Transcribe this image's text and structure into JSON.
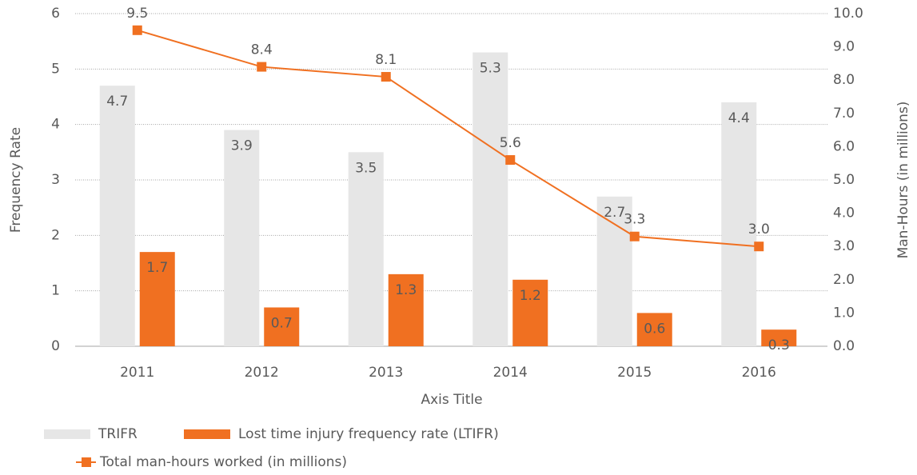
{
  "chart_data": {
    "type": "bar-line",
    "x_label": "Axis Title",
    "y_label": "Frequency Rate",
    "y2_label": "Man-Hours (in millions)",
    "categories": [
      "2011",
      "2012",
      "2013",
      "2014",
      "2015",
      "2016"
    ],
    "series": [
      {
        "name": "TRIFR",
        "type": "bar",
        "color": "#e6e6e6",
        "values": [
          4.7,
          3.9,
          3.5,
          5.3,
          2.7,
          4.4
        ]
      },
      {
        "name": "Lost time injury frequency rate (LTIFR)",
        "type": "bar",
        "color": "#f07021",
        "values": [
          1.7,
          0.7,
          1.3,
          1.2,
          0.6,
          0.3
        ]
      },
      {
        "name": "Total man-hours worked (in millions)",
        "type": "line",
        "axis": "y2",
        "color": "#f07021",
        "values": [
          9.5,
          8.4,
          8.1,
          5.6,
          3.3,
          3.0
        ],
        "value_labels": [
          "9.5",
          "8.4",
          "8.1",
          "5.6",
          "3.3",
          "3.0"
        ]
      }
    ],
    "ylim": [
      0,
      6
    ],
    "yticks": [
      0,
      1,
      2,
      3,
      4,
      5,
      6
    ],
    "y2lim": [
      0,
      10
    ],
    "y2ticks": [
      {
        "value": 0,
        "label": "0.0"
      },
      {
        "value": 1,
        "label": "1.0"
      },
      {
        "value": 2,
        "label": "2.0"
      },
      {
        "value": 3,
        "label": "3.0"
      },
      {
        "value": 4,
        "label": "4.0"
      },
      {
        "value": 5,
        "label": "5.0"
      },
      {
        "value": 6,
        "label": "6.0"
      },
      {
        "value": 7,
        "label": "7.0"
      },
      {
        "value": 8,
        "label": "8.0"
      },
      {
        "value": 9,
        "label": "9.0"
      },
      {
        "value": 10,
        "label": "10.0"
      }
    ],
    "grid": true,
    "legend": "bottom-left"
  }
}
